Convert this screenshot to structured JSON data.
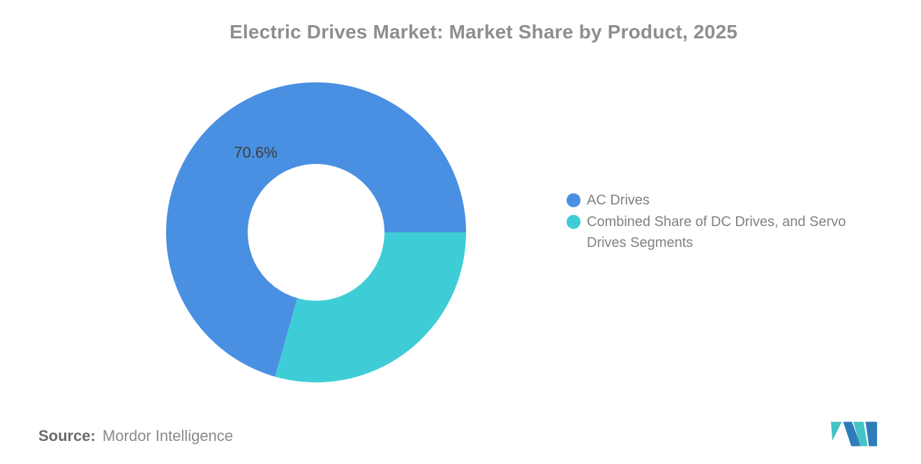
{
  "title": "Electric Drives Market: Market Share by Product, 2025",
  "chart_data": {
    "type": "pie",
    "subtype": "donut",
    "title": "Electric Drives Market: Market Share by Product, 2025",
    "unit": "%",
    "start_angle_deg": 195.84,
    "angle_direction": "clockwise-from-top",
    "legend_position": "right",
    "segments": [
      {
        "id": "ac-drives",
        "label": "AC Drives",
        "value": 70.6,
        "data_label": "70.6%",
        "color": "#4A90E2"
      },
      {
        "id": "dc-servo-drives",
        "label": "Combined Share of DC Drives, and Servo Drives Segments",
        "value": 29.4,
        "data_label": "",
        "color": "#3ECDD6"
      }
    ]
  },
  "legend": {
    "items": [
      {
        "label": "AC Drives",
        "color": "#4A90E2"
      },
      {
        "label": "Combined Share of DC Drives, and Servo Drives Segments",
        "color": "#3ECDD6"
      }
    ]
  },
  "footer": {
    "source_label": "Source:",
    "source_value": "Mordor Intelligence",
    "logo_name": "mordor-intelligence-logo",
    "logo_colors": {
      "blue": "#2E7CBA",
      "teal": "#44C3C6"
    }
  },
  "colors": {
    "background": "#FFFFFF",
    "title_text": "#8E8E8E",
    "legend_text": "#818181",
    "data_label_text": "#3D3D3D"
  }
}
